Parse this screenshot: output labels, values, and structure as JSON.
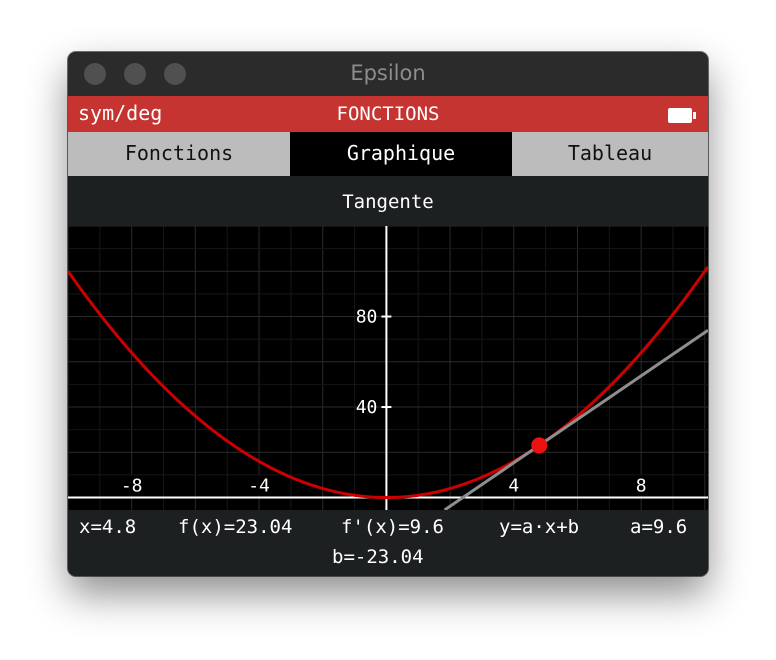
{
  "window": {
    "title": "Epsilon"
  },
  "status": {
    "mode": "sym/deg",
    "title": "FONCTIONS"
  },
  "tabs": [
    "Fonctions",
    "Graphique",
    "Tableau"
  ],
  "subheader": "Tangente",
  "graph": {
    "function": "x^2",
    "x_range": [
      -10,
      10.1
    ],
    "y_range": [
      -5.5,
      120
    ],
    "x_ticks": [
      "-8",
      "-4",
      "4",
      "8"
    ],
    "y_ticks": [
      "80",
      "40"
    ],
    "tangent_point_x": 4.8,
    "curve_color": "#cc0000",
    "point_color": "#ee1111",
    "tangent_color": "#8e8e8e"
  },
  "readout": {
    "x": "x=4.8",
    "fx": "f(x)=23.04",
    "dfx": "f'(x)=9.6",
    "eq": "y=a·x+b",
    "a": "a=9.6",
    "b": "b=-23.04"
  }
}
